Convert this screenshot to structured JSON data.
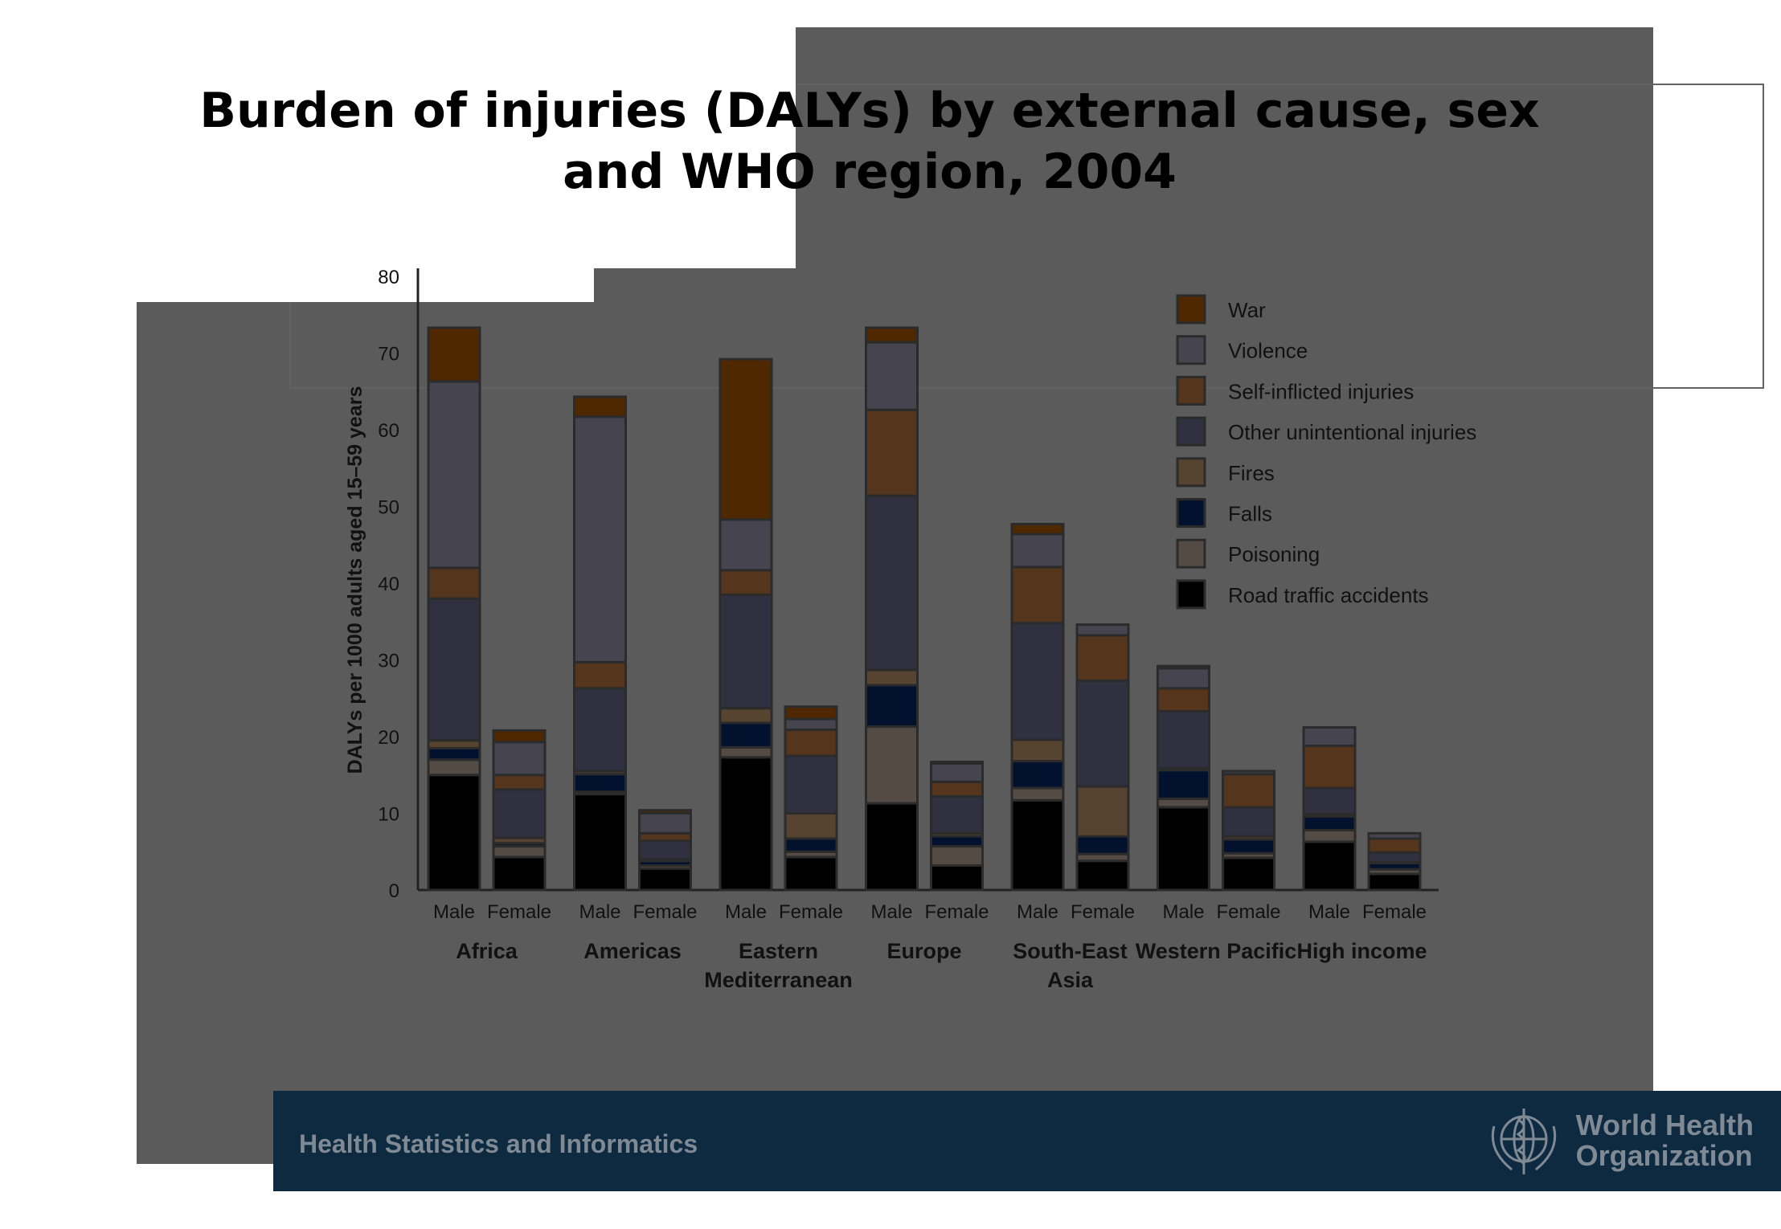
{
  "slide": {
    "title_line1": "Burden of injuries (DALYs) by external cause, sex",
    "title_line2": "and WHO region, 2004",
    "footer_text": "Health Statistics and Informatics",
    "org_line1": "World Health",
    "org_line2": "Organization"
  },
  "chart_data": {
    "type": "bar",
    "stacked": true,
    "title": "Burden of injuries (DALYs) by external cause, sex and WHO region, 2004",
    "ylabel": "DALYs per 1000 adults aged 15–59 years",
    "xlabel": "",
    "ylim": [
      0,
      80
    ],
    "yticks": [
      0,
      10,
      20,
      30,
      40,
      50,
      60,
      70,
      80
    ],
    "legend_position": "top-right",
    "groups": [
      {
        "name": "Africa",
        "lines": [
          "Africa"
        ]
      },
      {
        "name": "Americas",
        "lines": [
          "Americas"
        ]
      },
      {
        "name": "Eastern Mediterranean",
        "lines": [
          "Eastern",
          "Mediterranean"
        ]
      },
      {
        "name": "Europe",
        "lines": [
          "Europe"
        ]
      },
      {
        "name": "South-East Asia",
        "lines": [
          "South-East",
          "Asia"
        ]
      },
      {
        "name": "Western Pacific",
        "lines": [
          "Western Pacific"
        ]
      },
      {
        "name": "High income",
        "lines": [
          "High income"
        ]
      }
    ],
    "sexes": [
      "Male",
      "Female"
    ],
    "categories": [
      "Africa Male",
      "Africa Female",
      "Americas Male",
      "Americas Female",
      "Eastern Mediterranean Male",
      "Eastern Mediterranean Female",
      "Europe Male",
      "Europe Female",
      "South-East Asia Male",
      "South-East Asia Female",
      "Western Pacific Male",
      "Western Pacific Female",
      "High income Male",
      "High income Female"
    ],
    "series": [
      {
        "name": "Road traffic accidents",
        "color": "#000000",
        "values": [
          15,
          4.3,
          12.5,
          2.8,
          17.3,
          4.3,
          11.3,
          3.2,
          11.7,
          3.8,
          10.8,
          4.2,
          6.3,
          2.1
        ]
      },
      {
        "name": "Poisoning",
        "color": "#544b45",
        "values": [
          2,
          1.4,
          0.3,
          0.4,
          1.3,
          0.7,
          10,
          2.5,
          1.6,
          0.9,
          1.1,
          0.6,
          1.5,
          0.6
        ]
      },
      {
        "name": "Falls",
        "color": "#02122e",
        "values": [
          1.5,
          0.4,
          2.3,
          0.6,
          3.2,
          1.7,
          5.4,
          1.3,
          3.5,
          2.3,
          3.7,
          1.8,
          1.8,
          0.8
        ]
      },
      {
        "name": "Fires",
        "color": "#574430",
        "values": [
          1,
          0.7,
          0.4,
          0.2,
          1.9,
          3.3,
          2,
          0.4,
          2.8,
          6.5,
          0.3,
          0.4,
          0.3,
          0.1
        ]
      },
      {
        "name": "Other unintentional injuries",
        "color": "#303040",
        "values": [
          18.5,
          6.3,
          10.8,
          2.4,
          14.8,
          7.5,
          22.7,
          4.8,
          15.2,
          13.8,
          7.4,
          3.8,
          3.4,
          1.3
        ]
      },
      {
        "name": "Self-inflicted injuries",
        "color": "#55361d",
        "values": [
          4,
          1.9,
          3.4,
          1,
          3.2,
          3.4,
          11.2,
          1.9,
          7.3,
          5.9,
          3,
          4.3,
          5.5,
          1.8
        ]
      },
      {
        "name": "Violence",
        "color": "#45444f",
        "values": [
          24.3,
          4.3,
          32,
          2.6,
          6.6,
          1.4,
          8.8,
          2.4,
          4.3,
          1.4,
          2.6,
          0.4,
          2.4,
          0.7
        ]
      },
      {
        "name": "War",
        "color": "#4f2800",
        "values": [
          7,
          1.5,
          2.6,
          0.4,
          20.9,
          1.6,
          1.9,
          0.2,
          1.3,
          0,
          0.3,
          0,
          0,
          0
        ]
      }
    ],
    "legend_order": [
      "War",
      "Violence",
      "Self-inflicted injuries",
      "Other unintentional injuries",
      "Fires",
      "Falls",
      "Poisoning",
      "Road traffic accidents"
    ]
  }
}
